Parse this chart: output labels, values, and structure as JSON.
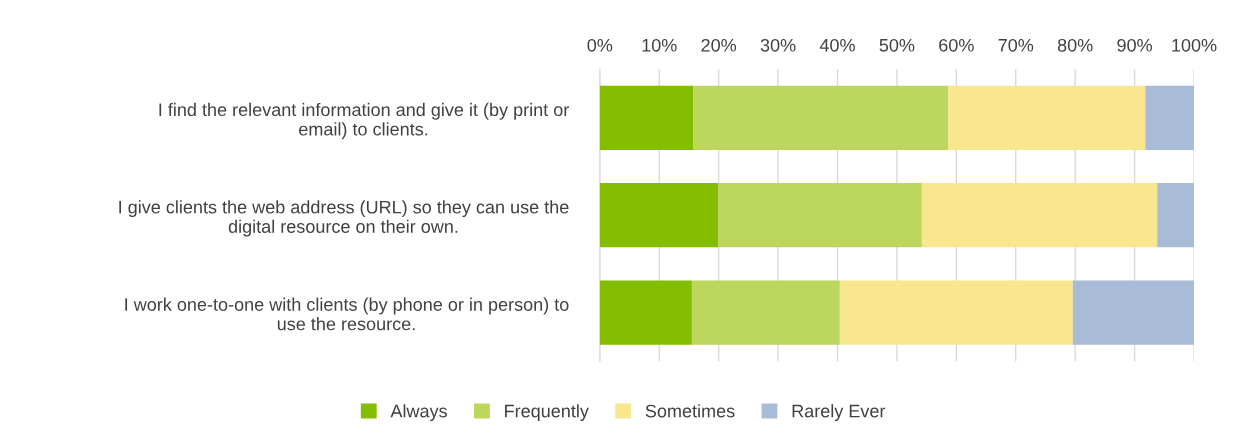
{
  "chart_data": {
    "type": "bar",
    "orientation": "horizontal",
    "stacked": true,
    "categories": [
      "I find the relevant information and give it (by print or email) to clients.",
      "I give clients the web address (URL) so they can use the digital resource on their own.",
      "I work one-to-one with clients (by phone or in person) to use the resource."
    ],
    "series": [
      {
        "name": "Always",
        "color": "#84bd00",
        "values": [
          15.7,
          19.9,
          15.5
        ]
      },
      {
        "name": "Frequently",
        "color": "#bcd65e",
        "values": [
          42.9,
          34.3,
          24.9
        ]
      },
      {
        "name": "Sometimes",
        "color": "#f8e78e",
        "values": [
          33.2,
          39.6,
          39.2
        ]
      },
      {
        "name": "Rarely Ever",
        "color": "#a8bcd7",
        "values": [
          8.2,
          6.2,
          20.4
        ]
      }
    ],
    "xlim": [
      0,
      100
    ],
    "xticks": [
      {
        "value": 0,
        "label": "0%"
      },
      {
        "value": 10,
        "label": "10%"
      },
      {
        "value": 20,
        "label": "20%"
      },
      {
        "value": 30,
        "label": "30%"
      },
      {
        "value": 40,
        "label": "40%"
      },
      {
        "value": 50,
        "label": "50%"
      },
      {
        "value": 60,
        "label": "60%"
      },
      {
        "value": 70,
        "label": "70%"
      },
      {
        "value": 80,
        "label": "80%"
      },
      {
        "value": 90,
        "label": "90%"
      },
      {
        "value": 100,
        "label": "100%"
      }
    ],
    "grid": "x",
    "legend": "bottom"
  }
}
